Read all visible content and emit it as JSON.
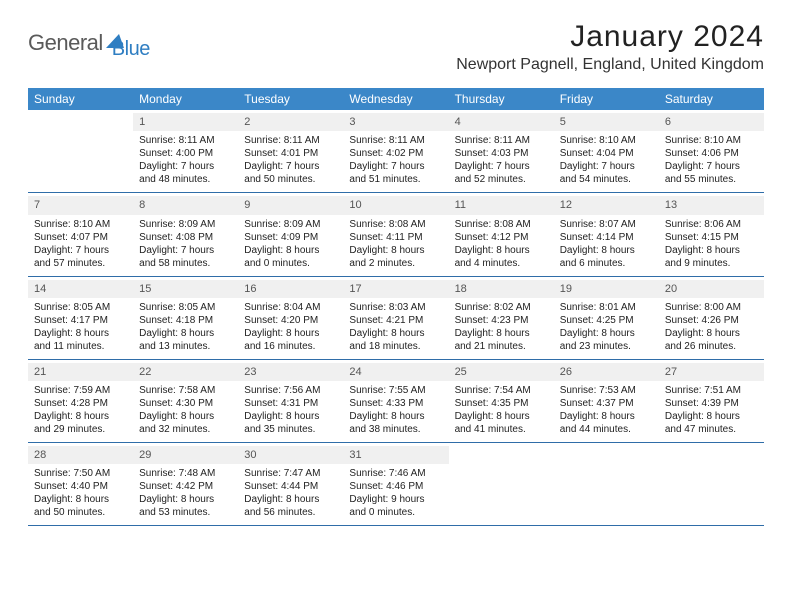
{
  "logo": {
    "part1": "General",
    "part2": "Blue"
  },
  "title": "January 2024",
  "location": "Newport Pagnell, England, United Kingdom",
  "colors": {
    "header_bg": "#3b87c8",
    "header_text": "#ffffff",
    "daynum_bg": "#f0f0f0",
    "rule": "#2f6da8",
    "logo_blue": "#2f7ec2",
    "logo_gray": "#5a5a5a"
  },
  "day_labels": [
    "Sunday",
    "Monday",
    "Tuesday",
    "Wednesday",
    "Thursday",
    "Friday",
    "Saturday"
  ],
  "weeks": [
    [
      {
        "n": "",
        "l1": "",
        "l2": "",
        "l3": "",
        "l4": "",
        "empty": true
      },
      {
        "n": "1",
        "l1": "Sunrise: 8:11 AM",
        "l2": "Sunset: 4:00 PM",
        "l3": "Daylight: 7 hours",
        "l4": "and 48 minutes."
      },
      {
        "n": "2",
        "l1": "Sunrise: 8:11 AM",
        "l2": "Sunset: 4:01 PM",
        "l3": "Daylight: 7 hours",
        "l4": "and 50 minutes."
      },
      {
        "n": "3",
        "l1": "Sunrise: 8:11 AM",
        "l2": "Sunset: 4:02 PM",
        "l3": "Daylight: 7 hours",
        "l4": "and 51 minutes."
      },
      {
        "n": "4",
        "l1": "Sunrise: 8:11 AM",
        "l2": "Sunset: 4:03 PM",
        "l3": "Daylight: 7 hours",
        "l4": "and 52 minutes."
      },
      {
        "n": "5",
        "l1": "Sunrise: 8:10 AM",
        "l2": "Sunset: 4:04 PM",
        "l3": "Daylight: 7 hours",
        "l4": "and 54 minutes."
      },
      {
        "n": "6",
        "l1": "Sunrise: 8:10 AM",
        "l2": "Sunset: 4:06 PM",
        "l3": "Daylight: 7 hours",
        "l4": "and 55 minutes."
      }
    ],
    [
      {
        "n": "7",
        "l1": "Sunrise: 8:10 AM",
        "l2": "Sunset: 4:07 PM",
        "l3": "Daylight: 7 hours",
        "l4": "and 57 minutes."
      },
      {
        "n": "8",
        "l1": "Sunrise: 8:09 AM",
        "l2": "Sunset: 4:08 PM",
        "l3": "Daylight: 7 hours",
        "l4": "and 58 minutes."
      },
      {
        "n": "9",
        "l1": "Sunrise: 8:09 AM",
        "l2": "Sunset: 4:09 PM",
        "l3": "Daylight: 8 hours",
        "l4": "and 0 minutes."
      },
      {
        "n": "10",
        "l1": "Sunrise: 8:08 AM",
        "l2": "Sunset: 4:11 PM",
        "l3": "Daylight: 8 hours",
        "l4": "and 2 minutes."
      },
      {
        "n": "11",
        "l1": "Sunrise: 8:08 AM",
        "l2": "Sunset: 4:12 PM",
        "l3": "Daylight: 8 hours",
        "l4": "and 4 minutes."
      },
      {
        "n": "12",
        "l1": "Sunrise: 8:07 AM",
        "l2": "Sunset: 4:14 PM",
        "l3": "Daylight: 8 hours",
        "l4": "and 6 minutes."
      },
      {
        "n": "13",
        "l1": "Sunrise: 8:06 AM",
        "l2": "Sunset: 4:15 PM",
        "l3": "Daylight: 8 hours",
        "l4": "and 9 minutes."
      }
    ],
    [
      {
        "n": "14",
        "l1": "Sunrise: 8:05 AM",
        "l2": "Sunset: 4:17 PM",
        "l3": "Daylight: 8 hours",
        "l4": "and 11 minutes."
      },
      {
        "n": "15",
        "l1": "Sunrise: 8:05 AM",
        "l2": "Sunset: 4:18 PM",
        "l3": "Daylight: 8 hours",
        "l4": "and 13 minutes."
      },
      {
        "n": "16",
        "l1": "Sunrise: 8:04 AM",
        "l2": "Sunset: 4:20 PM",
        "l3": "Daylight: 8 hours",
        "l4": "and 16 minutes."
      },
      {
        "n": "17",
        "l1": "Sunrise: 8:03 AM",
        "l2": "Sunset: 4:21 PM",
        "l3": "Daylight: 8 hours",
        "l4": "and 18 minutes."
      },
      {
        "n": "18",
        "l1": "Sunrise: 8:02 AM",
        "l2": "Sunset: 4:23 PM",
        "l3": "Daylight: 8 hours",
        "l4": "and 21 minutes."
      },
      {
        "n": "19",
        "l1": "Sunrise: 8:01 AM",
        "l2": "Sunset: 4:25 PM",
        "l3": "Daylight: 8 hours",
        "l4": "and 23 minutes."
      },
      {
        "n": "20",
        "l1": "Sunrise: 8:00 AM",
        "l2": "Sunset: 4:26 PM",
        "l3": "Daylight: 8 hours",
        "l4": "and 26 minutes."
      }
    ],
    [
      {
        "n": "21",
        "l1": "Sunrise: 7:59 AM",
        "l2": "Sunset: 4:28 PM",
        "l3": "Daylight: 8 hours",
        "l4": "and 29 minutes."
      },
      {
        "n": "22",
        "l1": "Sunrise: 7:58 AM",
        "l2": "Sunset: 4:30 PM",
        "l3": "Daylight: 8 hours",
        "l4": "and 32 minutes."
      },
      {
        "n": "23",
        "l1": "Sunrise: 7:56 AM",
        "l2": "Sunset: 4:31 PM",
        "l3": "Daylight: 8 hours",
        "l4": "and 35 minutes."
      },
      {
        "n": "24",
        "l1": "Sunrise: 7:55 AM",
        "l2": "Sunset: 4:33 PM",
        "l3": "Daylight: 8 hours",
        "l4": "and 38 minutes."
      },
      {
        "n": "25",
        "l1": "Sunrise: 7:54 AM",
        "l2": "Sunset: 4:35 PM",
        "l3": "Daylight: 8 hours",
        "l4": "and 41 minutes."
      },
      {
        "n": "26",
        "l1": "Sunrise: 7:53 AM",
        "l2": "Sunset: 4:37 PM",
        "l3": "Daylight: 8 hours",
        "l4": "and 44 minutes."
      },
      {
        "n": "27",
        "l1": "Sunrise: 7:51 AM",
        "l2": "Sunset: 4:39 PM",
        "l3": "Daylight: 8 hours",
        "l4": "and 47 minutes."
      }
    ],
    [
      {
        "n": "28",
        "l1": "Sunrise: 7:50 AM",
        "l2": "Sunset: 4:40 PM",
        "l3": "Daylight: 8 hours",
        "l4": "and 50 minutes."
      },
      {
        "n": "29",
        "l1": "Sunrise: 7:48 AM",
        "l2": "Sunset: 4:42 PM",
        "l3": "Daylight: 8 hours",
        "l4": "and 53 minutes."
      },
      {
        "n": "30",
        "l1": "Sunrise: 7:47 AM",
        "l2": "Sunset: 4:44 PM",
        "l3": "Daylight: 8 hours",
        "l4": "and 56 minutes."
      },
      {
        "n": "31",
        "l1": "Sunrise: 7:46 AM",
        "l2": "Sunset: 4:46 PM",
        "l3": "Daylight: 9 hours",
        "l4": "and 0 minutes."
      },
      {
        "n": "",
        "l1": "",
        "l2": "",
        "l3": "",
        "l4": "",
        "empty": true
      },
      {
        "n": "",
        "l1": "",
        "l2": "",
        "l3": "",
        "l4": "",
        "empty": true
      },
      {
        "n": "",
        "l1": "",
        "l2": "",
        "l3": "",
        "l4": "",
        "empty": true
      }
    ]
  ]
}
